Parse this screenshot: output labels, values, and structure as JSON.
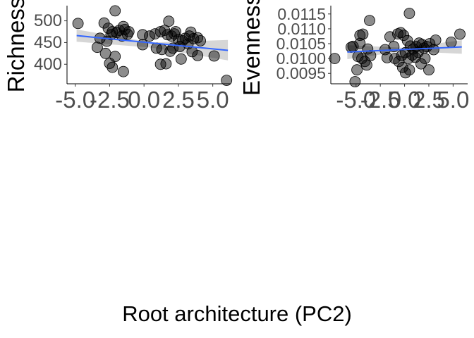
{
  "figure": {
    "shared_xlabel": "Root architecture (PC2)"
  },
  "chart_data": [
    {
      "type": "scatter",
      "ylabel": "Richness",
      "xlabel": "",
      "x_ticks": [
        "-5.0",
        "-2.5",
        "0.0",
        "2.5",
        "5.0"
      ],
      "x_tick_values": [
        -5.0,
        -2.5,
        0.0,
        2.5,
        5.0
      ],
      "y_ticks": [
        "400",
        "450",
        "500"
      ],
      "y_tick_values": [
        400,
        450,
        500
      ],
      "xlim": [
        -5.6,
        6.3
      ],
      "ylim": [
        355,
        535
      ],
      "grid": false,
      "smooth": {
        "method": "lm",
        "color": "#3366ff",
        "band_color": "#999999"
      },
      "trend": {
        "x": [
          -4.9,
          6.1
        ],
        "y": [
          466,
          432
        ]
      },
      "band": {
        "x": [
          -4.9,
          0.6,
          6.1
        ],
        "upper": [
          480,
          450,
          456
        ],
        "lower": [
          452,
          438,
          409
        ]
      },
      "points": [
        [
          -4.8,
          494
        ],
        [
          -2.1,
          523
        ],
        [
          -3.2,
          460
        ],
        [
          -2.9,
          495
        ],
        [
          -2.6,
          483
        ],
        [
          -2.3,
          475
        ],
        [
          -2.0,
          473
        ],
        [
          -1.8,
          478
        ],
        [
          -1.5,
          487
        ],
        [
          -1.4,
          480
        ],
        [
          -1.2,
          469
        ],
        [
          -1.1,
          475
        ],
        [
          -1.6,
          465
        ],
        [
          -2.4,
          468
        ],
        [
          -2.7,
          453
        ],
        [
          -3.4,
          439
        ],
        [
          -2.8,
          425
        ],
        [
          -2.1,
          418
        ],
        [
          -2.5,
          402
        ],
        [
          -2.3,
          393
        ],
        [
          -1.5,
          383
        ],
        [
          -0.1,
          468
        ],
        [
          0.4,
          465
        ],
        [
          0.8,
          470
        ],
        [
          1.2,
          475
        ],
        [
          1.5,
          478
        ],
        [
          1.7,
          468
        ],
        [
          2.0,
          465
        ],
        [
          2.2,
          470
        ],
        [
          2.5,
          457
        ],
        [
          2.8,
          454
        ],
        [
          3.0,
          460
        ],
        [
          3.3,
          465
        ],
        [
          3.6,
          459
        ],
        [
          3.9,
          461
        ],
        [
          1.8,
          499
        ],
        [
          2.3,
          475
        ],
        [
          3.4,
          474
        ],
        [
          4.1,
          454
        ],
        [
          3.2,
          447
        ],
        [
          2.6,
          441
        ],
        [
          2.1,
          437
        ],
        [
          1.3,
          434
        ],
        [
          0.9,
          437
        ],
        [
          -0.1,
          445
        ],
        [
          1.9,
          430
        ],
        [
          3.5,
          429
        ],
        [
          3.9,
          420
        ],
        [
          1.2,
          400
        ],
        [
          1.6,
          401
        ],
        [
          2.7,
          412
        ],
        [
          5.1,
          419
        ],
        [
          6.0,
          363
        ]
      ]
    },
    {
      "type": "scatter",
      "ylabel": "Evenness",
      "xlabel": "",
      "x_ticks": [
        "-5.0",
        "-2.5",
        "0.0",
        "2.5",
        "5.0"
      ],
      "x_tick_values": [
        -5.0,
        -2.5,
        0.0,
        2.5,
        5.0
      ],
      "y_ticks": [
        "0.0095",
        "0.0100",
        "0.0105",
        "0.0110",
        "0.0115"
      ],
      "y_tick_values": [
        0.0095,
        0.01,
        0.0105,
        0.011,
        0.0115
      ],
      "xlim": [
        -7.6,
        6.5
      ],
      "ylim": [
        0.00915,
        0.01178
      ],
      "grid": false,
      "smooth": {
        "method": "lm",
        "color": "#3366ff",
        "band_color": "#999999"
      },
      "trend": {
        "x": [
          -5.9,
          5.9
        ],
        "y": [
          0.01022,
          0.01039
        ]
      },
      "band": {
        "x": [
          -5.9,
          0.0,
          5.9
        ],
        "upper": [
          0.01045,
          0.01036,
          0.01062
        ],
        "lower": [
          0.00998,
          0.01025,
          0.01016
        ]
      },
      "points": [
        [
          -7.2,
          0.01
        ],
        [
          -5.5,
          0.01038
        ],
        [
          -4.9,
          0.00962
        ],
        [
          -4.6,
          0.01078
        ],
        [
          -4.3,
          0.01082
        ],
        [
          -4.8,
          0.01007
        ],
        [
          -4.4,
          0.01
        ],
        [
          -4.1,
          0.0099
        ],
        [
          -3.8,
          0.01032
        ],
        [
          -3.5,
          0.0101
        ],
        [
          -3.9,
          0.00978
        ],
        [
          -5.1,
          0.00922
        ],
        [
          -3.6,
          0.01128
        ],
        [
          -4.6,
          0.01051
        ],
        [
          -5.3,
          0.01041
        ],
        [
          -2.0,
          0.0103
        ],
        [
          -1.5,
          0.01073
        ],
        [
          -1.1,
          0.0104
        ],
        [
          -0.7,
          0.01083
        ],
        [
          -0.4,
          0.01087
        ],
        [
          -0.1,
          0.01078
        ],
        [
          0.3,
          0.0106
        ],
        [
          0.6,
          0.01042
        ],
        [
          0.9,
          0.01032
        ],
        [
          1.2,
          0.0104
        ],
        [
          1.5,
          0.01052
        ],
        [
          1.8,
          0.01047
        ],
        [
          2.0,
          0.01035
        ],
        [
          2.3,
          0.0104
        ],
        [
          2.6,
          0.0105
        ],
        [
          -1.0,
          0.01
        ],
        [
          -0.6,
          0.0099
        ],
        [
          -0.3,
          0.0101
        ],
        [
          0.1,
          0.0102
        ],
        [
          0.4,
          0.01
        ],
        [
          0.8,
          0.01012
        ],
        [
          1.1,
          0.01004
        ],
        [
          1.4,
          0.01021
        ],
        [
          1.7,
          0.00982
        ],
        [
          2.1,
          0.01
        ],
        [
          -0.2,
          0.0097
        ],
        [
          0.1,
          0.00952
        ],
        [
          0.5,
          0.00962
        ],
        [
          2.5,
          0.00962
        ],
        [
          3.2,
          0.01062
        ],
        [
          4.8,
          0.01055
        ],
        [
          5.7,
          0.01082
        ],
        [
          0.5,
          0.01152
        ],
        [
          -1.8,
          0.01003
        ],
        [
          3.0,
          0.0103
        ]
      ]
    }
  ]
}
